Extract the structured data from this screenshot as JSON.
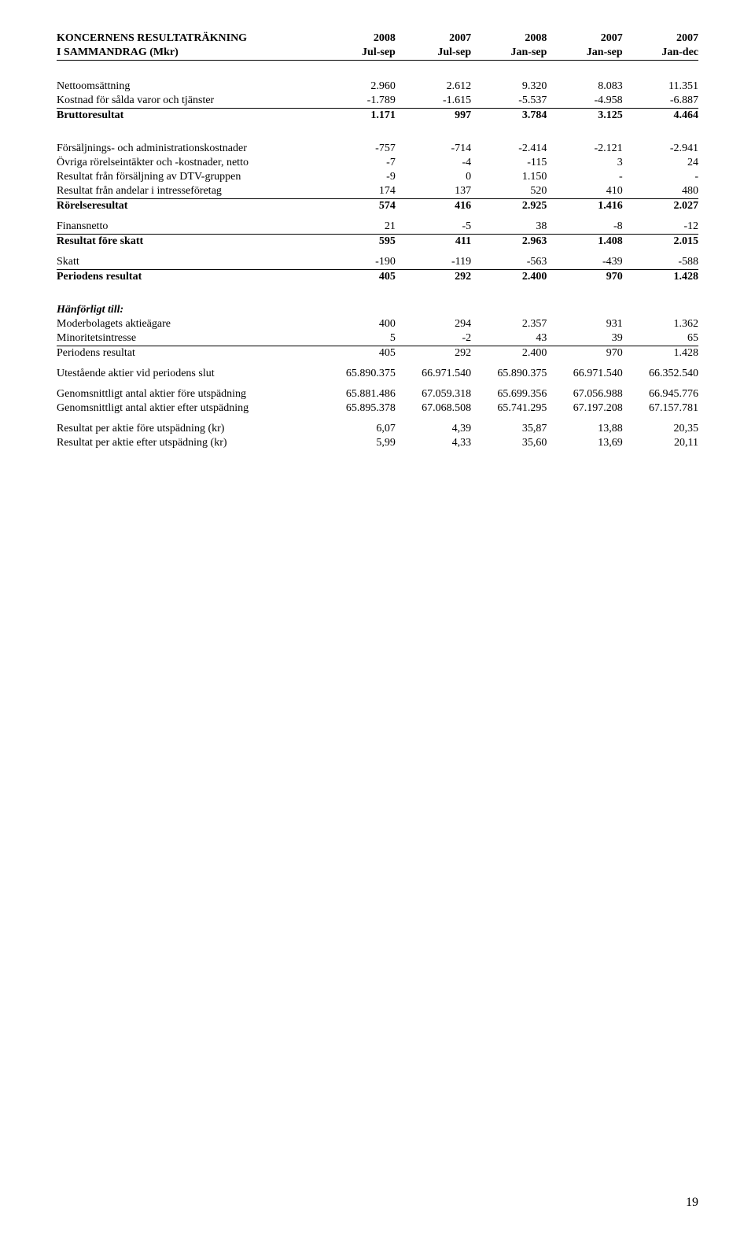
{
  "header": {
    "title1": "KONCERNENS RESULTATRÄKNING",
    "title2": "I SAMMANDRAG (Mkr)",
    "cols_top": [
      "2008",
      "2007",
      "2008",
      "2007",
      "2007"
    ],
    "cols_bot": [
      "Jul-sep",
      "Jul-sep",
      "Jan-sep",
      "Jan-sep",
      "Jan-dec"
    ]
  },
  "rows": {
    "nettooms": {
      "l": "Nettoomsättning",
      "v": [
        "2.960",
        "2.612",
        "9.320",
        "8.083",
        "11.351"
      ]
    },
    "kostnad": {
      "l": "Kostnad för sålda varor och tjänster",
      "v": [
        "-1.789",
        "-1.615",
        "-5.537",
        "-4.958",
        "-6.887"
      ]
    },
    "brutto": {
      "l": "Bruttoresultat",
      "v": [
        "1.171",
        "997",
        "3.784",
        "3.125",
        "4.464"
      ]
    },
    "admin": {
      "l": "Försäljnings- och administrationskostnader",
      "v": [
        "-757",
        "-714",
        "-2.414",
        "-2.121",
        "-2.941"
      ]
    },
    "ovriga": {
      "l": "Övriga rörelseintäkter och -kostnader, netto",
      "v": [
        "-7",
        "-4",
        "-115",
        "3",
        "24"
      ]
    },
    "dtv": {
      "l": "Resultat från försäljning av DTV-gruppen",
      "v": [
        "-9",
        "0",
        "1.150",
        "-",
        "-"
      ]
    },
    "intresse": {
      "l": "Resultat från andelar i intresseföretag",
      "v": [
        "174",
        "137",
        "520",
        "410",
        "480"
      ]
    },
    "rorelse": {
      "l": "Rörelseresultat",
      "v": [
        "574",
        "416",
        "2.925",
        "1.416",
        "2.027"
      ]
    },
    "finans": {
      "l": "Finansnetto",
      "v": [
        "21",
        "-5",
        "38",
        "-8",
        "-12"
      ]
    },
    "fore_skatt": {
      "l": "Resultat före skatt",
      "v": [
        "595",
        "411",
        "2.963",
        "1.408",
        "2.015"
      ]
    },
    "skatt": {
      "l": "Skatt",
      "v": [
        "-190",
        "-119",
        "-563",
        "-439",
        "-588"
      ]
    },
    "periodens1": {
      "l": "Periodens resultat",
      "v": [
        "405",
        "292",
        "2.400",
        "970",
        "1.428"
      ]
    },
    "hanforligt": {
      "l": "Hänförligt till:"
    },
    "moder": {
      "l": "Moderbolagets aktieägare",
      "v": [
        "400",
        "294",
        "2.357",
        "931",
        "1.362"
      ]
    },
    "minoritet": {
      "l": "Minoritetsintresse",
      "v": [
        "5",
        "-2",
        "43",
        "39",
        "65"
      ]
    },
    "periodens2": {
      "l": "Periodens resultat",
      "v": [
        "405",
        "292",
        "2.400",
        "970",
        "1.428"
      ]
    },
    "utestaende": {
      "l": "Utestående aktier vid periodens slut",
      "v": [
        "65.890.375",
        "66.971.540",
        "65.890.375",
        "66.971.540",
        "66.352.540"
      ]
    },
    "genom_fore": {
      "l": "Genomsnittligt antal aktier före utspädning",
      "v": [
        "65.881.486",
        "67.059.318",
        "65.699.356",
        "67.056.988",
        "66.945.776"
      ]
    },
    "genom_efter": {
      "l": "Genomsnittligt antal aktier efter utspädning",
      "v": [
        "65.895.378",
        "67.068.508",
        "65.741.295",
        "67.197.208",
        "67.157.781"
      ]
    },
    "res_fore": {
      "l": "Resultat per aktie före utspädning (kr)",
      "v": [
        "6,07",
        "4,39",
        "35,87",
        "13,88",
        "20,35"
      ]
    },
    "res_efter": {
      "l": "Resultat per aktie efter utspädning (kr)",
      "v": [
        "5,99",
        "4,33",
        "35,60",
        "13,69",
        "20,11"
      ]
    }
  },
  "page_number": "19"
}
